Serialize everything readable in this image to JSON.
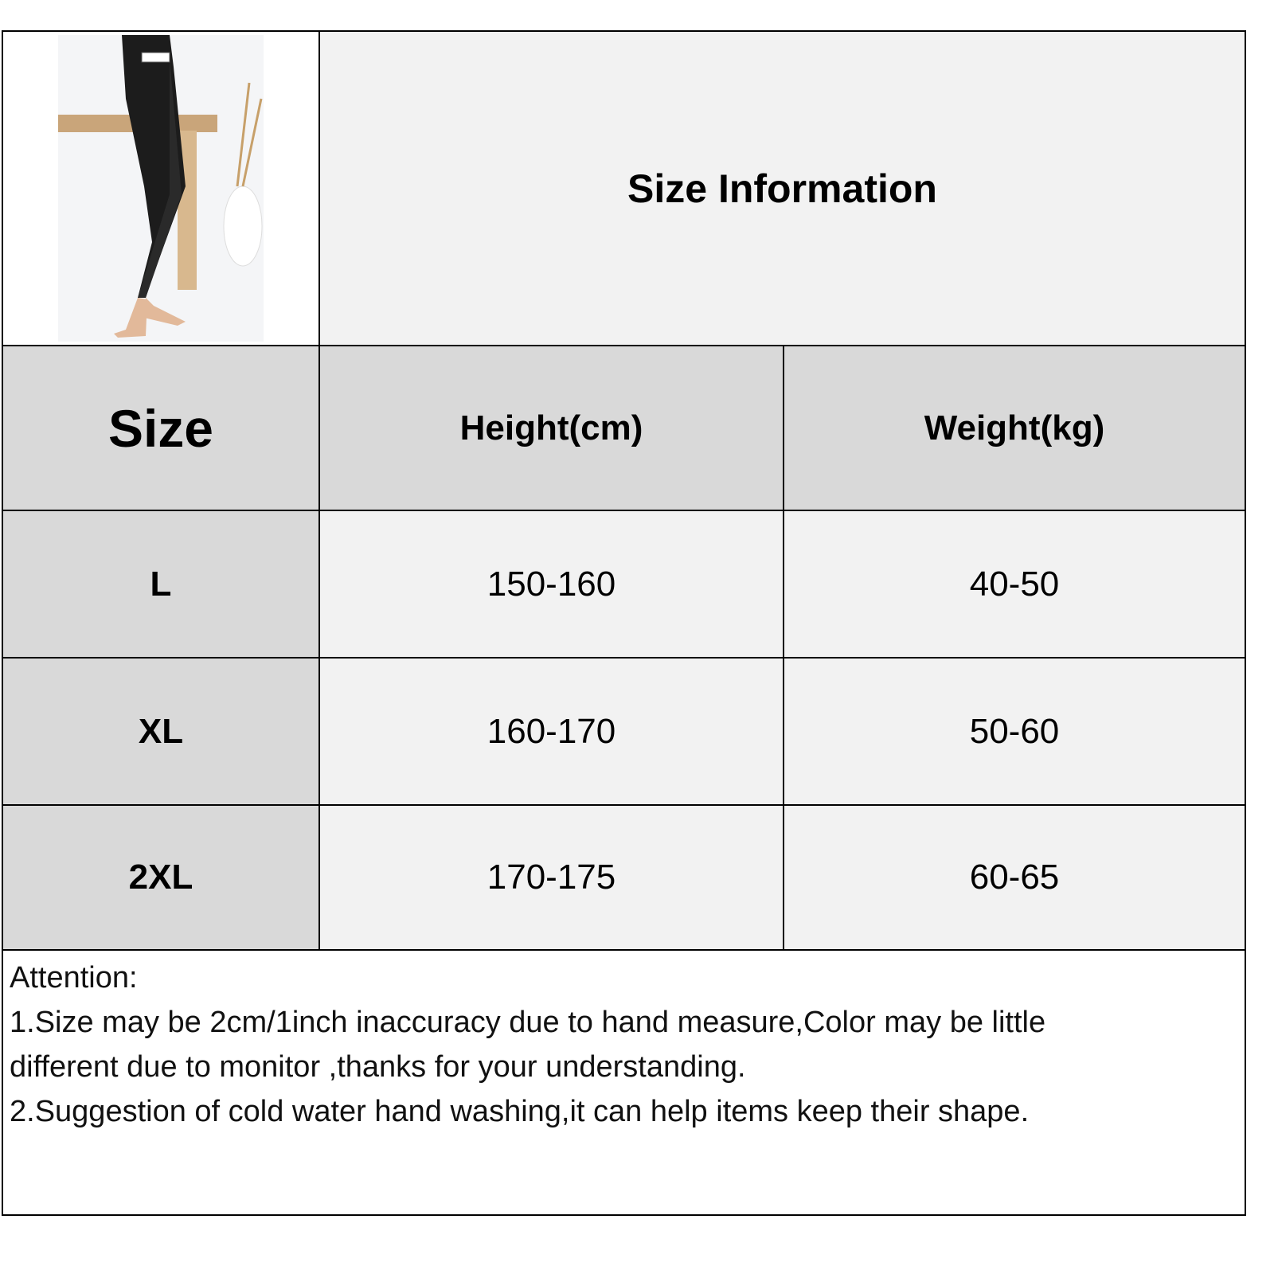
{
  "title": "Size Information",
  "headers": {
    "size": "Size",
    "height": "Height(cm)",
    "weight": "Weight(kg)"
  },
  "rows": [
    {
      "size": "L",
      "height": "150-160",
      "weight": "40-50"
    },
    {
      "size": "XL",
      "height": "160-170",
      "weight": "50-60"
    },
    {
      "size": "2XL",
      "height": "170-175",
      "weight": "60-65"
    }
  ],
  "notes": {
    "heading": "Attention:",
    "line1": "1.Size may be 2cm/1inch inaccuracy due to hand measure,Color may be little",
    "line2": "different due to monitor ,thanks for your understanding.",
    "line3": "2.Suggestion of cold water hand washing,it can help items keep their shape."
  },
  "colors": {
    "header_bg": "#d9d9d9",
    "cell_bg": "#f2f2f2"
  }
}
